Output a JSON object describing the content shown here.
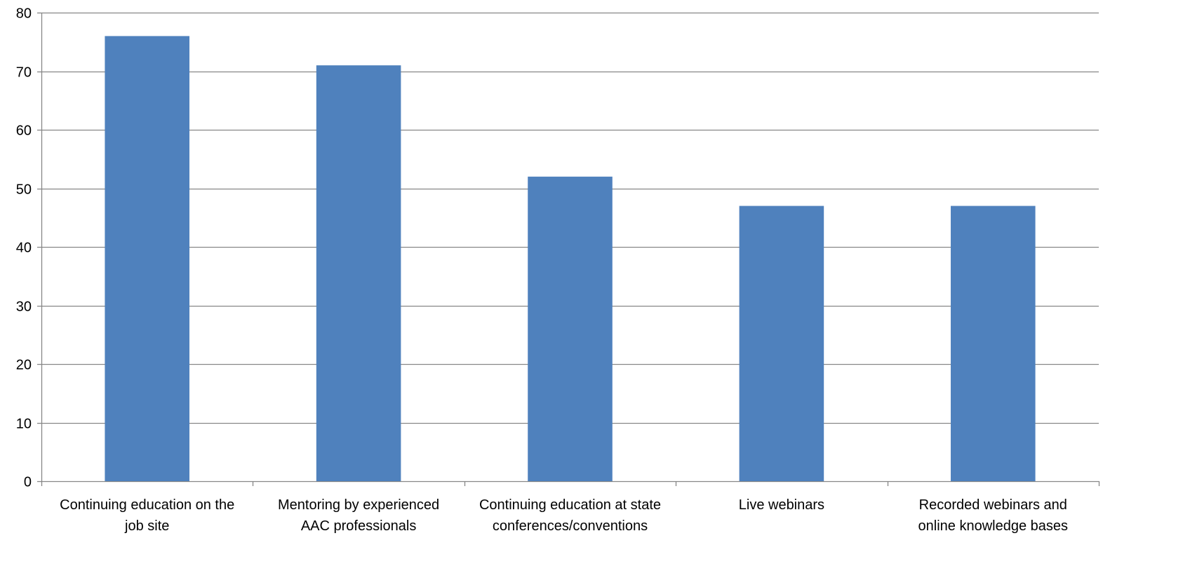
{
  "chart_data": {
    "type": "bar",
    "categories": [
      [
        "Continuing education on the",
        "job site"
      ],
      [
        "Mentoring by experienced",
        "AAC professionals"
      ],
      [
        "Continuing education at state",
        "conferences/conventions"
      ],
      [
        "Live webinars"
      ],
      [
        "Recorded webinars and",
        "online knowledge bases"
      ]
    ],
    "values": [
      76,
      71,
      52,
      47,
      47
    ],
    "yticks": [
      "0",
      "10",
      "20",
      "30",
      "40",
      "50",
      "60",
      "70",
      "80"
    ],
    "ylim": [
      0,
      80
    ],
    "grid": true,
    "legend": "none",
    "colors": {
      "bar": "#4f81bd",
      "grid": "#878787",
      "axis": "#878787"
    }
  }
}
